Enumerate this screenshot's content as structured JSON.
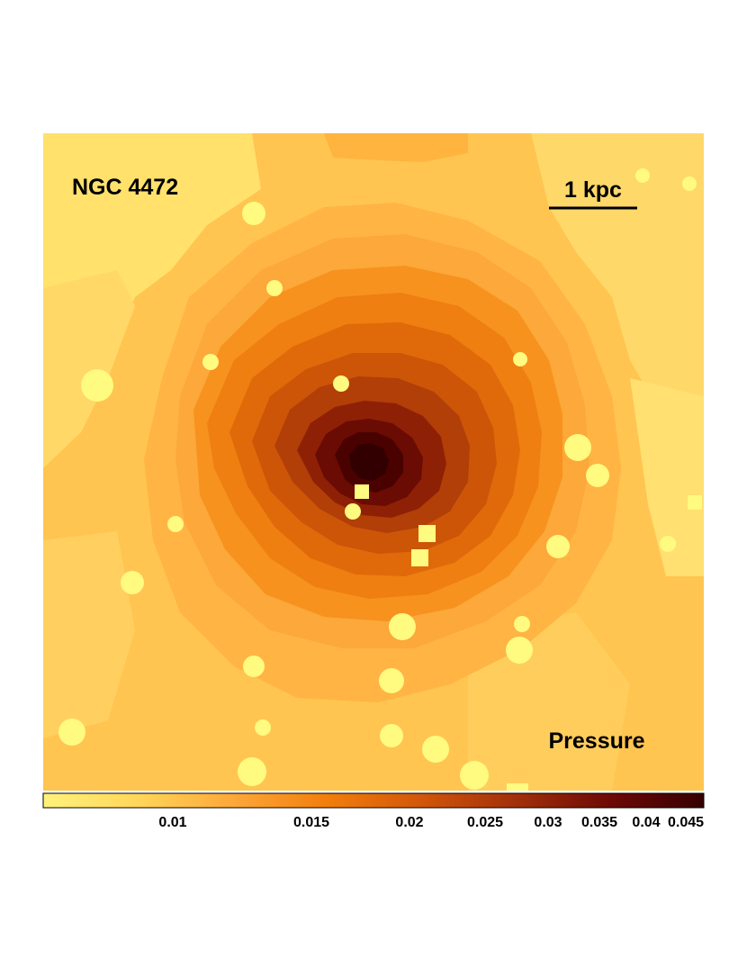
{
  "figure": {
    "object_label": "NGC 4472",
    "scale_label": "1 kpc",
    "map_label": "Pressure"
  },
  "colorbar": {
    "colors": [
      "#fff27c",
      "#ffd65a",
      "#fca83a",
      "#f27e0c",
      "#d2570a",
      "#a2300a",
      "#6e0a06",
      "#360000"
    ],
    "tick_values": [
      "0.01",
      "0.015",
      "0.02",
      "0.025",
      "0.03",
      "0.035",
      "0.04",
      "0.045"
    ]
  },
  "palette": {
    "point_source": "#fffa80",
    "outer": "#ffc24e",
    "core": "#320000"
  }
}
